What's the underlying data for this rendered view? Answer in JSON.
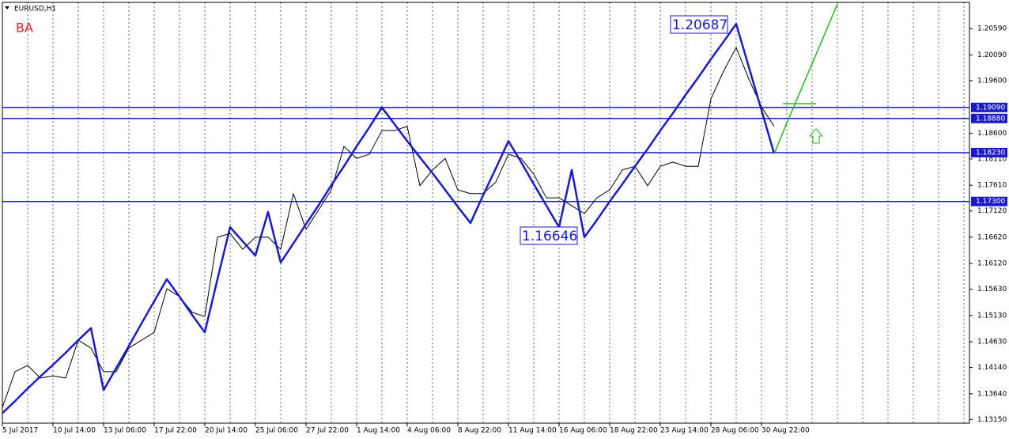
{
  "chart_data": {
    "type": "line",
    "title": "EURUSD,H1",
    "label": "BA",
    "categories": [
      "5 Jul 2017",
      null,
      null,
      null,
      "10 Jul 14:00",
      null,
      null,
      null,
      "13 Jul 06:00",
      null,
      null,
      null,
      "17 Jul 22:00",
      null,
      null,
      null,
      "20 Jul 14:00",
      null,
      null,
      null,
      "25 Jul 06:00",
      null,
      null,
      null,
      "27 Jul 22:00",
      null,
      null,
      null,
      "1 Aug 14:00",
      null,
      null,
      null,
      "4 Aug 06:00",
      null,
      null,
      null,
      "8 Aug 22:00",
      null,
      null,
      null,
      "11 Aug 14:00",
      null,
      null,
      null,
      "16 Aug 06:00",
      null,
      null,
      null,
      "18 Aug 22:00",
      null,
      null,
      null,
      "23 Aug 14:00",
      null,
      null,
      null,
      "28 Aug 06:00",
      null,
      null,
      null,
      "30 Aug 22:00",
      null,
      null,
      null,
      null,
      null,
      null,
      null,
      null,
      null,
      null,
      null,
      null,
      null,
      null,
      null,
      null
    ],
    "series": [
      {
        "color": "#000000",
        "values": [
          1.1338,
          1.1406,
          1.1418,
          1.1394,
          1.1398,
          1.1394,
          1.1466,
          1.1451,
          1.1406,
          1.1406,
          1.1451,
          1.1466,
          1.1481,
          1.1564,
          1.1549,
          1.1519,
          1.1511,
          1.1662,
          1.1669,
          1.1639,
          1.1662,
          1.1662,
          1.1639,
          1.1745,
          1.1677,
          1.1714,
          1.1752,
          1.1835,
          1.1812,
          1.182,
          1.1865,
          1.1865,
          1.1873,
          1.176,
          1.179,
          1.1812,
          1.1752,
          1.1745,
          1.1745,
          1.1767,
          1.182,
          1.1812,
          1.1782,
          1.1737,
          1.1737,
          1.1722,
          1.1707,
          1.1737,
          1.1752,
          1.179,
          1.1797,
          1.176,
          1.1797,
          1.1805,
          1.1797,
          1.1797,
          1.1925,
          1.1978,
          1.2023,
          1.1963,
          1.191,
          1.1873,
          null,
          null,
          null,
          null,
          null,
          null,
          null,
          null,
          null,
          null,
          null,
          null,
          null,
          null,
          null
        ]
      },
      {
        "color": "#1a1acc",
        "values": [
          1.1327,
          1.135,
          1.1374,
          1.1397,
          1.1419,
          1.1442,
          1.1466,
          1.1489,
          1.1371,
          1.1413,
          1.1455,
          1.1498,
          1.154,
          1.1582,
          1.1549,
          1.1514,
          1.1481,
          1.1582,
          1.1681,
          1.1654,
          1.1627,
          1.171,
          1.1614,
          1.165,
          1.1687,
          1.1723,
          1.1761,
          1.1797,
          1.1835,
          1.1871,
          1.1909,
          1.1877,
          1.1845,
          1.1814,
          1.1784,
          1.1752,
          1.172,
          1.1689,
          1.1742,
          1.1793,
          1.1845,
          1.1805,
          1.1763,
          1.1722,
          1.1681,
          1.179,
          1.1662,
          1.1695,
          1.173,
          1.1763,
          1.1797,
          1.183,
          1.1865,
          1.1898,
          1.1933,
          1.1966,
          1.2001,
          1.2034,
          1.2068,
          1.1986,
          1.1904,
          1.1821,
          null,
          null,
          null,
          null,
          null,
          null,
          null,
          null,
          null,
          null,
          null,
          null,
          null,
          null,
          null
        ]
      },
      {
        "color": "#22bb22",
        "values": [
          null,
          null,
          null,
          null,
          null,
          null,
          null,
          null,
          null,
          null,
          null,
          null,
          null,
          null,
          null,
          null,
          null,
          null,
          null,
          null,
          null,
          null,
          null,
          null,
          null,
          null,
          null,
          null,
          null,
          null,
          null,
          null,
          null,
          null,
          null,
          null,
          null,
          null,
          null,
          null,
          null,
          null,
          null,
          null,
          null,
          null,
          null,
          null,
          null,
          null,
          null,
          null,
          null,
          null,
          null,
          null,
          null,
          null,
          null,
          null,
          null,
          1.1821,
          1.1879,
          1.1936,
          1.1992,
          1.2049,
          1.2106,
          null,
          null,
          null,
          null,
          null,
          null,
          null,
          null,
          null,
          null
        ]
      }
    ],
    "levels": [
      {
        "value": 1.1909,
        "label": "1.19090"
      },
      {
        "value": 1.1888,
        "label": "1.18880"
      },
      {
        "value": 1.1823,
        "label": "1.18230"
      },
      {
        "value": 1.173,
        "label": "1.17300"
      }
    ],
    "level_color": "#1a1acc",
    "target": {
      "value": 1.1916,
      "color": "#22bb22"
    },
    "annotations": [
      "1.20687",
      "1.16646"
    ],
    "ylim": [
      1.1308,
      1.2109
    ],
    "yticks": [
      {
        "value": 1.1315,
        "label": "1.13150"
      },
      {
        "value": 1.1364,
        "label": "1.13640"
      },
      {
        "value": 1.1414,
        "label": "1.14140"
      },
      {
        "value": 1.1463,
        "label": "1.14630"
      },
      {
        "value": 1.1513,
        "label": "1.15130"
      },
      {
        "value": 1.1563,
        "label": "1.15630"
      },
      {
        "value": 1.1612,
        "label": "1.16120"
      },
      {
        "value": 1.1662,
        "label": "1.16620"
      },
      {
        "value": 1.1712,
        "label": "1.17120"
      },
      {
        "value": 1.1761,
        "label": "1.17610"
      },
      {
        "value": 1.1811,
        "label": "1.18110"
      },
      {
        "value": 1.186,
        "label": "1.18600"
      },
      {
        "value": 1.196,
        "label": "1.19600"
      },
      {
        "value": 1.2009,
        "label": "1.20090"
      },
      {
        "value": 1.2059,
        "label": "1.20590"
      }
    ],
    "grid": true
  }
}
